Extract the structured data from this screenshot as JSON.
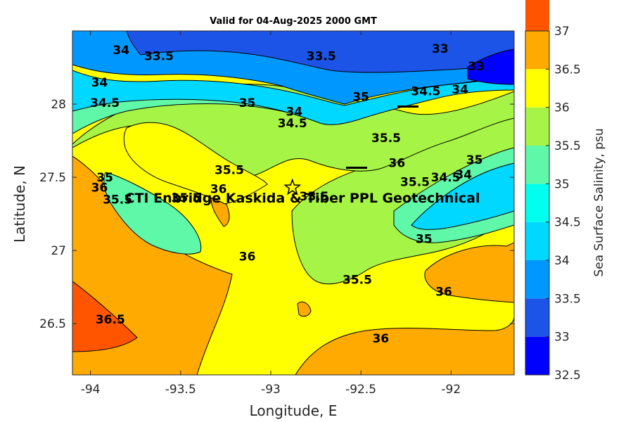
{
  "title": "Valid for 04-Aug-2025 2000 GMT",
  "xlabel": "Longitude, E",
  "ylabel": "Latitude, N",
  "colorbar_label": "Sea Surface Salinity, psu",
  "site_label": "CTI Enbridge Kaskida & Tiber PPL Geotechnical",
  "site_marker": {
    "symbol": "star",
    "lon": -92.88,
    "lat": 27.43
  },
  "chart_data": {
    "type": "contour_map",
    "xlim": [
      -94.1,
      -91.65
    ],
    "ylim": [
      26.15,
      28.5
    ],
    "xticks": [
      -94,
      -93.5,
      -93,
      -92.5,
      -92
    ],
    "yticks": [
      26.5,
      27,
      27.5,
      28
    ],
    "colorbar": {
      "levels": [
        32.5,
        33,
        33.5,
        34,
        34.5,
        35,
        35.5,
        36,
        36.5,
        37
      ],
      "colors": [
        "#0000ff",
        "#1b54e6",
        "#0098ff",
        "#00d8ff",
        "#00ffee",
        "#5ff7a8",
        "#a6f546",
        "#ffff00",
        "#ffaa00",
        "#ff5500"
      ]
    },
    "contour_labels": [
      {
        "text": "34",
        "lon": -93.83,
        "lat": 28.37
      },
      {
        "text": "33.5",
        "lon": -93.62,
        "lat": 28.33
      },
      {
        "text": "33.5",
        "lon": -92.72,
        "lat": 28.33
      },
      {
        "text": "33",
        "lon": -92.06,
        "lat": 28.38
      },
      {
        "text": "33",
        "lon": -91.86,
        "lat": 28.26
      },
      {
        "text": "34",
        "lon": -93.95,
        "lat": 28.15
      },
      {
        "text": "34.5",
        "lon": -93.92,
        "lat": 28.01
      },
      {
        "text": "35",
        "lon": -93.13,
        "lat": 28.01
      },
      {
        "text": "34",
        "lon": -92.87,
        "lat": 27.95
      },
      {
        "text": "34.5",
        "lon": -92.88,
        "lat": 27.87
      },
      {
        "text": "35",
        "lon": -92.5,
        "lat": 28.05
      },
      {
        "text": "34.5",
        "lon": -92.14,
        "lat": 28.09
      },
      {
        "text": "34",
        "lon": -91.95,
        "lat": 28.1
      },
      {
        "text": "35.5",
        "lon": -92.36,
        "lat": 27.77
      },
      {
        "text": "36",
        "lon": -92.3,
        "lat": 27.6
      },
      {
        "text": "35",
        "lon": -91.87,
        "lat": 27.62
      },
      {
        "text": "34.5",
        "lon": -92.03,
        "lat": 27.5
      },
      {
        "text": "34",
        "lon": -91.93,
        "lat": 27.52
      },
      {
        "text": "35.5",
        "lon": -92.2,
        "lat": 27.47
      },
      {
        "text": "35.5",
        "lon": -93.23,
        "lat": 27.55
      },
      {
        "text": "35",
        "lon": -93.92,
        "lat": 27.5
      },
      {
        "text": "36",
        "lon": -93.95,
        "lat": 27.43
      },
      {
        "text": "35.5",
        "lon": -93.85,
        "lat": 27.35
      },
      {
        "text": "36",
        "lon": -93.29,
        "lat": 27.42
      },
      {
        "text": "35.5",
        "lon": -93.47,
        "lat": 27.36
      },
      {
        "text": "35.5",
        "lon": -92.76,
        "lat": 27.37
      },
      {
        "text": "35",
        "lon": -92.15,
        "lat": 27.08
      },
      {
        "text": "36",
        "lon": -93.13,
        "lat": 26.96
      },
      {
        "text": "35.5",
        "lon": -92.52,
        "lat": 26.8
      },
      {
        "text": "36",
        "lon": -92.04,
        "lat": 26.72
      },
      {
        "text": "36.5",
        "lon": -93.89,
        "lat": 26.53
      },
      {
        "text": "36",
        "lon": -92.39,
        "lat": 26.4
      }
    ]
  }
}
